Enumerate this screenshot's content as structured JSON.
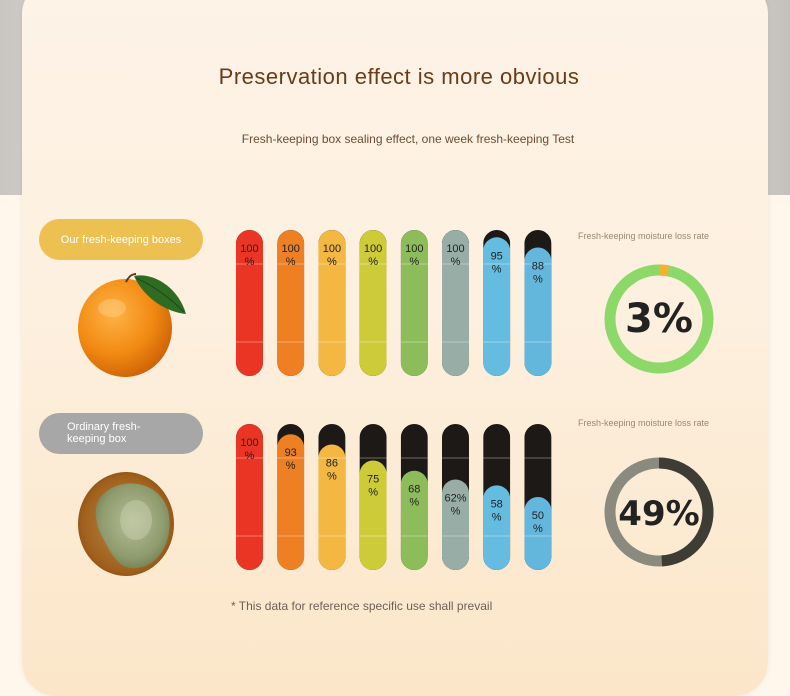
{
  "title": "Preservation effect is more obvious",
  "subtitle": "Fresh-keeping box sealing effect, one week fresh-keeping Test",
  "footnote": "* This data for reference specific use shall prevail",
  "colors": {
    "bars": [
      "#ea3524",
      "#ee7f22",
      "#f3b742",
      "#cdcb37",
      "#8dbd5a",
      "#97ada5",
      "#64bde0",
      "#64b7dc"
    ],
    "bar_empty": "#1c1916",
    "ring_good": "#8cd868",
    "ring_good_loss": "#f2b12e",
    "ring_bad": "#8a8a7f",
    "ring_bad_loss": "#3d3d33"
  },
  "chart_data": [
    {
      "type": "bar",
      "title": "",
      "series": [
        {
          "name": "Our fresh-keeping boxes",
          "values": [
            100,
            100,
            100,
            100,
            100,
            100,
            95,
            88
          ]
        }
      ],
      "value_labels": [
        "100\n%",
        "100\n%",
        "100\n%",
        "100\n%",
        "100\n%",
        "100\n%",
        "95\n%",
        "88\n%"
      ],
      "ylim": [
        0,
        100
      ]
    },
    {
      "type": "bar",
      "title": "",
      "series": [
        {
          "name": "Ordinary fresh-keeping box",
          "values": [
            100,
            93,
            86,
            75,
            68,
            62,
            58,
            50
          ]
        }
      ],
      "value_labels": [
        "100\n%",
        "93\n%",
        "86\n%",
        "75\n%",
        "68\n%",
        "62%\n%",
        "58\n%",
        "50\n%"
      ],
      "ylim": [
        0,
        100
      ]
    },
    {
      "type": "pie",
      "title": "Fresh-keeping moisture loss rate",
      "values": [
        3,
        97
      ],
      "center_label": "3%"
    },
    {
      "type": "pie",
      "title": "Fresh-keeping moisture loss rate",
      "values": [
        49,
        51
      ],
      "center_label": "49%"
    }
  ],
  "legend": {
    "ours_label": "Our fresh-keeping boxes",
    "ordinary_label": "Ordinary fresh-keeping box"
  },
  "icons": {
    "fresh_fruit": "orange-icon",
    "spoiled_fruit": "moldy-orange-icon"
  }
}
